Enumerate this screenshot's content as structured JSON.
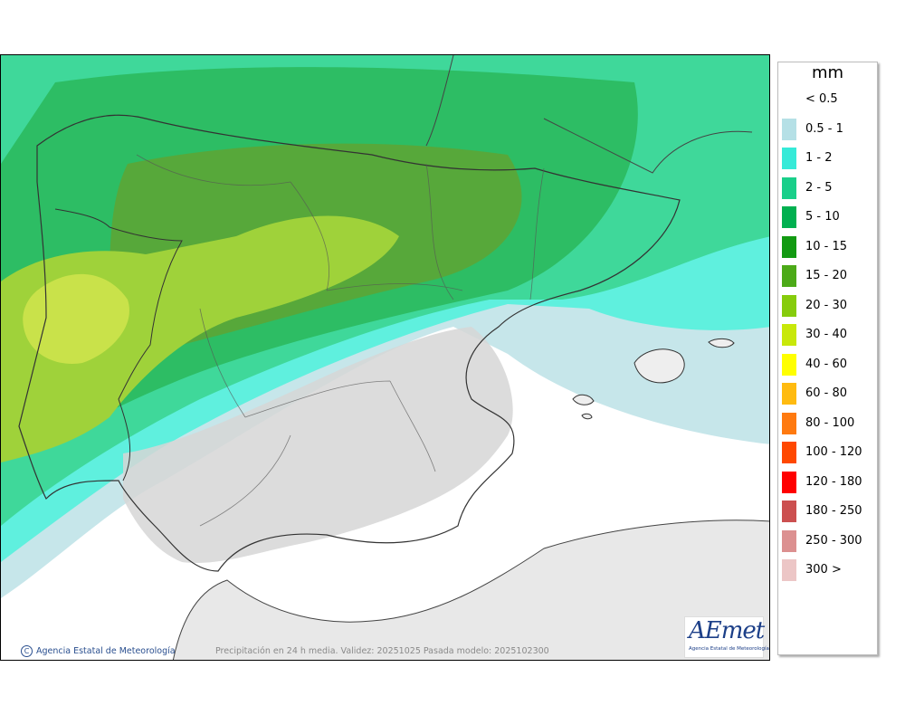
{
  "map": {
    "legend": {
      "unit": "mm",
      "items": [
        {
          "label": "< 0.5",
          "color": "#ffffff"
        },
        {
          "label": "0.5 - 1",
          "color": "#b5e0e6"
        },
        {
          "label": "1 - 2",
          "color": "#36ead8"
        },
        {
          "label": "2 - 5",
          "color": "#19cf8a"
        },
        {
          "label": "5 - 10",
          "color": "#00b050"
        },
        {
          "label": "10 - 15",
          "color": "#129a12"
        },
        {
          "label": "15 - 20",
          "color": "#4caa18"
        },
        {
          "label": "20 - 30",
          "color": "#86cc0c"
        },
        {
          "label": "30 - 40",
          "color": "#c8e80a"
        },
        {
          "label": "40 - 60",
          "color": "#ffff00"
        },
        {
          "label": "60 - 80",
          "color": "#ffbb10"
        },
        {
          "label": "80 - 100",
          "color": "#ff7a10"
        },
        {
          "label": "100 - 120",
          "color": "#ff4800"
        },
        {
          "label": "120 - 180",
          "color": "#ff0000"
        },
        {
          "label": "180 - 250",
          "color": "#cc5050"
        },
        {
          "label": "250 - 300",
          "color": "#dc9090"
        },
        {
          "label": "300 >",
          "color": "#ecc6c6"
        }
      ]
    },
    "credit": "Agencia Estatal de Meteorología",
    "credit_symbol": "C",
    "caption": "Precipitación en 24 h media. Validez: 20251025 Pasada modelo: 2025102300",
    "logo": {
      "text": "AEmet",
      "subtitle": "Agencia Estatal de Meteorología"
    }
  }
}
